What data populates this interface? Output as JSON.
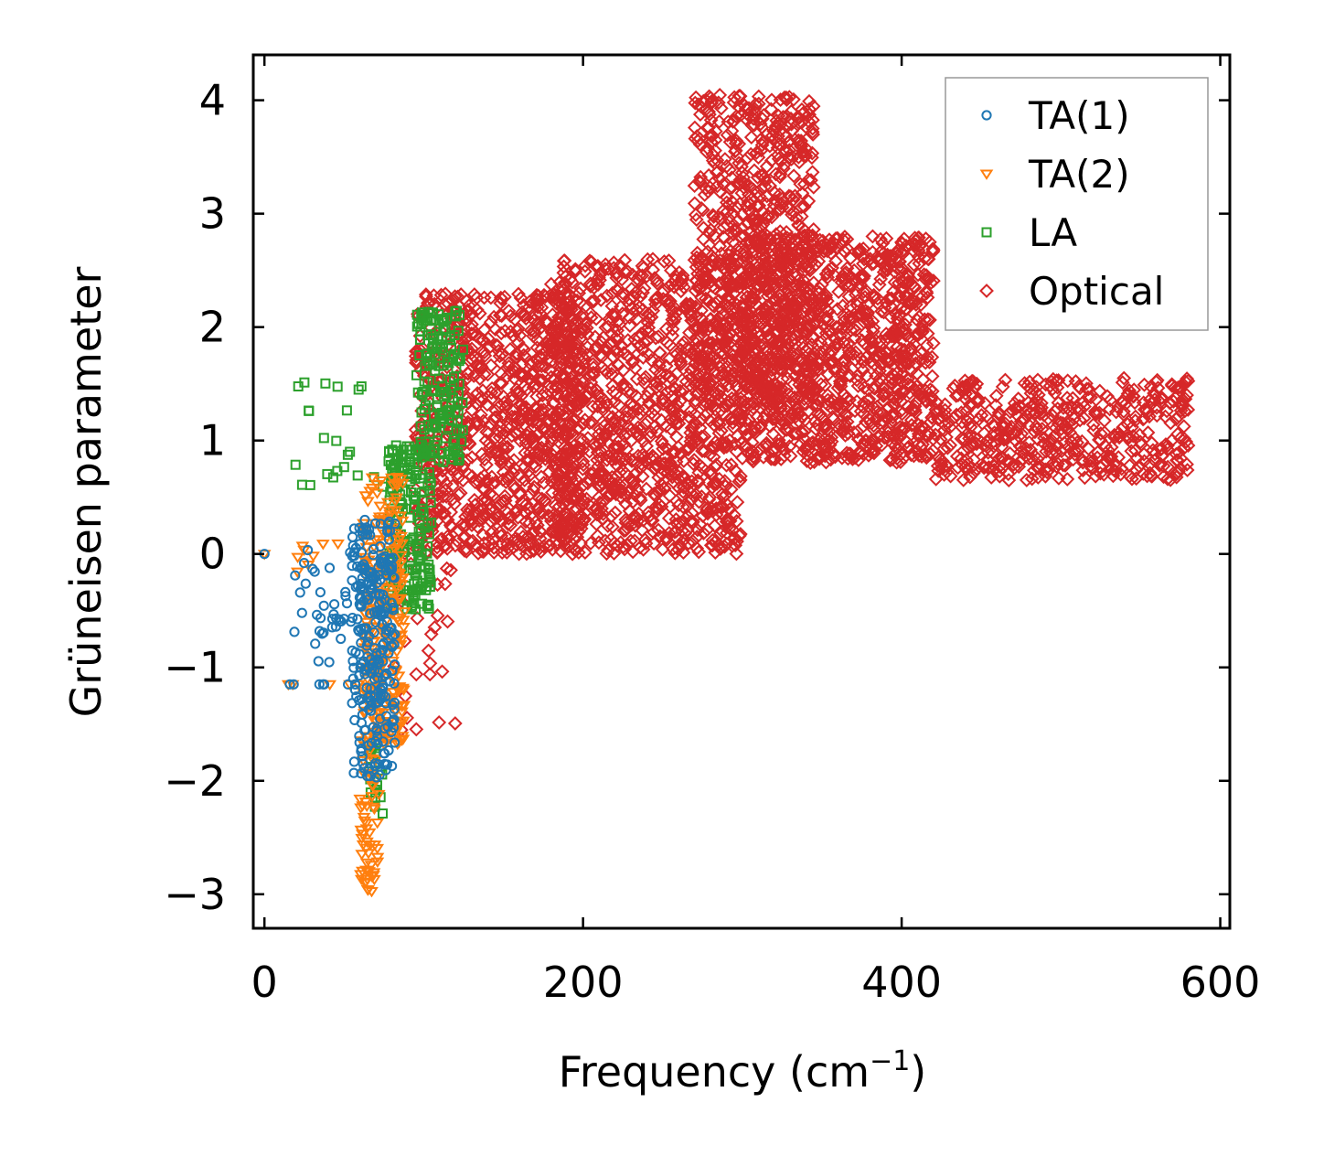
{
  "chart_data": {
    "type": "scatter",
    "title": "",
    "xlabel": "Frequency (cm",
    "xlabel_superscript": "−1",
    "xlabel_suffix": ")",
    "ylabel": "Grüneisen parameter",
    "xlim": [
      -7,
      606
    ],
    "ylim": [
      -3.3,
      4.4
    ],
    "xticks": [
      0,
      200,
      400,
      600
    ],
    "xtick_labels": [
      "0",
      "200",
      "400",
      "600"
    ],
    "yticks": [
      -3,
      -2,
      -1,
      0,
      1,
      2,
      3,
      4
    ],
    "ytick_labels": [
      "−3",
      "−2",
      "−1",
      "0",
      "1",
      "2",
      "3",
      "4"
    ],
    "legend_position": "top-right",
    "series": [
      {
        "name": "TA(1)",
        "marker": "circle",
        "color": "#1f77b4",
        "clusters": [
          {
            "x": [
              0,
              0
            ],
            "y": [
              0,
              0
            ],
            "n": 1
          },
          {
            "x": [
              12,
              60
            ],
            "y": [
              -1.15,
              -1.15
            ],
            "n": 8
          },
          {
            "x": [
              18,
              65
            ],
            "y": [
              -0.7,
              0.05
            ],
            "n": 30
          },
          {
            "x": [
              30,
              60
            ],
            "y": [
              -1.0,
              -0.3
            ],
            "n": 12
          },
          {
            "x": [
              55,
              82
            ],
            "y": [
              -2.0,
              0.3
            ],
            "n": 260
          }
        ]
      },
      {
        "name": "TA(2)",
        "marker": "triangle",
        "color": "#ff7f0e",
        "clusters": [
          {
            "x": [
              0,
              0
            ],
            "y": [
              0,
              0
            ],
            "n": 1
          },
          {
            "x": [
              12,
              60
            ],
            "y": [
              -1.15,
              -1.15
            ],
            "n": 6
          },
          {
            "x": [
              20,
              50
            ],
            "y": [
              -0.2,
              0.2
            ],
            "n": 8
          },
          {
            "x": [
              60,
              72
            ],
            "y": [
              -3.0,
              -1.6
            ],
            "n": 60
          },
          {
            "x": [
              62,
              88
            ],
            "y": [
              -1.7,
              0.7
            ],
            "n": 260
          }
        ]
      },
      {
        "name": "LA",
        "marker": "square",
        "color": "#2ca02c",
        "clusters": [
          {
            "x": [
              18,
              80
            ],
            "y": [
              0.5,
              1.55
            ],
            "n": 25
          },
          {
            "x": [
              65,
              75
            ],
            "y": [
              -2.35,
              -1.6
            ],
            "n": 20
          },
          {
            "x": [
              78,
              105
            ],
            "y": [
              -0.5,
              1.0
            ],
            "n": 200
          },
          {
            "x": [
              95,
              125
            ],
            "y": [
              0.8,
              2.15
            ],
            "n": 160
          }
        ]
      },
      {
        "name": "Optical",
        "marker": "diamond",
        "color": "#d62728",
        "clusters": [
          {
            "x": [
              80,
              120
            ],
            "y": [
              -1.6,
              0.2
            ],
            "n": 30
          },
          {
            "x": [
              95,
              200
            ],
            "y": [
              0.0,
              2.3
            ],
            "n": 900
          },
          {
            "x": [
              180,
              300
            ],
            "y": [
              0.0,
              2.6
            ],
            "n": 1100
          },
          {
            "x": [
              270,
              345
            ],
            "y": [
              1.3,
              4.05
            ],
            "n": 700
          },
          {
            "x": [
              300,
              420
            ],
            "y": [
              0.8,
              2.8
            ],
            "n": 1100
          },
          {
            "x": [
              420,
              580
            ],
            "y": [
              0.65,
              1.55
            ],
            "n": 500
          }
        ]
      }
    ]
  }
}
